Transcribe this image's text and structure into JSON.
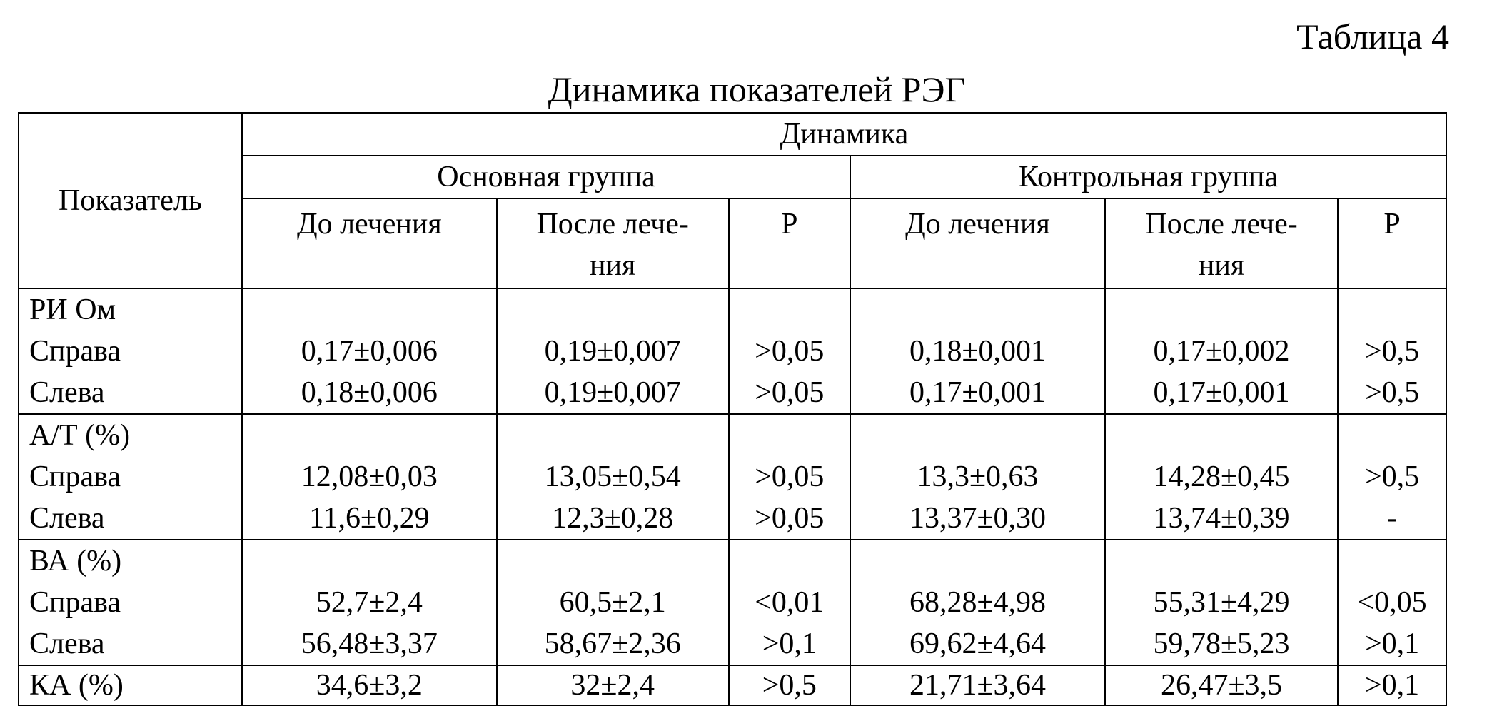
{
  "table_number": "Таблица 4",
  "title": "Динамика показателей РЭГ",
  "header": {
    "indicator": "Показатель",
    "dynamics": "Динамика",
    "main_group": "Основная группа",
    "control_group": "Контрольная группа",
    "before": "До лечения",
    "after_line1": "После лече-",
    "after_line2": "ния",
    "p": "Р"
  },
  "sections": [
    {
      "name": "РИ Ом",
      "rows": [
        {
          "label": "Справа",
          "main_before": "0,17±0,006",
          "main_after": "0,19±0,007",
          "main_p": ">0,05",
          "ctrl_before": "0,18±0,001",
          "ctrl_after": "0,17±0,002",
          "ctrl_p": ">0,5"
        },
        {
          "label": "Слева",
          "main_before": "0,18±0,006",
          "main_after": "0,19±0,007",
          "main_p": ">0,05",
          "ctrl_before": "0,17±0,001",
          "ctrl_after": "0,17±0,001",
          "ctrl_p": ">0,5"
        }
      ]
    },
    {
      "name": "А/Т (%)",
      "rows": [
        {
          "label": "Справа",
          "main_before": "12,08±0,03",
          "main_after": "13,05±0,54",
          "main_p": ">0,05",
          "ctrl_before": "13,3±0,63",
          "ctrl_after": "14,28±0,45",
          "ctrl_p": ">0,5"
        },
        {
          "label": "Слева",
          "main_before": "11,6±0,29",
          "main_after": "12,3±0,28",
          "main_p": ">0,05",
          "ctrl_before": "13,37±0,30",
          "ctrl_after": "13,74±0,39",
          "ctrl_p": "-"
        }
      ]
    },
    {
      "name": "ВА (%)",
      "rows": [
        {
          "label": "Справа",
          "main_before": "52,7±2,4",
          "main_after": "60,5±2,1",
          "main_p": "<0,01",
          "ctrl_before": "68,28±4,98",
          "ctrl_after": "55,31±4,29",
          "ctrl_p": "<0,05"
        },
        {
          "label": "Слева",
          "main_before": "56,48±3,37",
          "main_after": "58,67±2,36",
          "main_p": ">0,1",
          "ctrl_before": "69,62±4,64",
          "ctrl_after": "59,78±5,23",
          "ctrl_p": ">0,1"
        }
      ]
    }
  ],
  "ka_row": {
    "label": "КА (%)",
    "main_before": "34,6±3,2",
    "main_after": "32±2,4",
    "main_p": ">0,5",
    "ctrl_before": "21,71±3,64",
    "ctrl_after": "26,47±3,5",
    "ctrl_p": ">0,1"
  }
}
